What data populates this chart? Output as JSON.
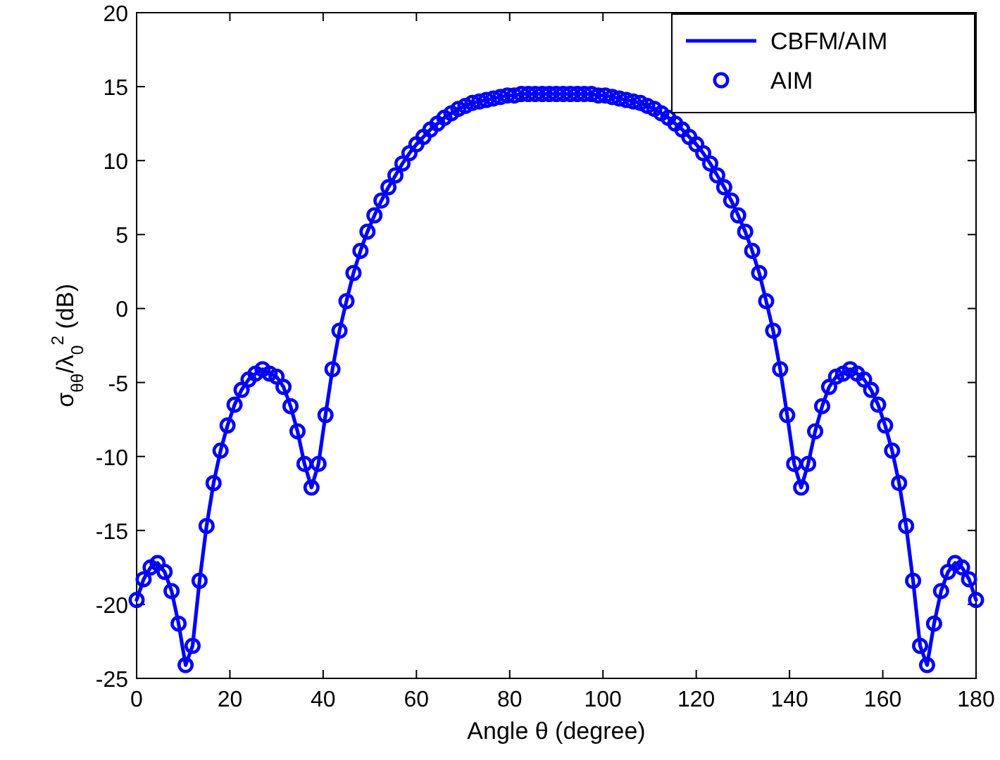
{
  "chart_data": {
    "type": "line",
    "xlabel": "Angle θ (degree)",
    "ylabel": "σ$_{θθ}$/λ$_{0}$$^{2}$ (dB)",
    "x": [
      0,
      1.5,
      3,
      4.5,
      6,
      7.5,
      9,
      10.5,
      12,
      13.5,
      15,
      16.5,
      18,
      19.5,
      21,
      22.5,
      24,
      25.5,
      27,
      28.5,
      30,
      31.5,
      33,
      34.5,
      36,
      37.5,
      39,
      40.5,
      42,
      43.5,
      45,
      46.5,
      48,
      49.5,
      51,
      52.5,
      54,
      55.5,
      57,
      58.5,
      60,
      61.5,
      63,
      64.5,
      66,
      67.5,
      69,
      70.5,
      72,
      73.5,
      75,
      76.5,
      78,
      79.5,
      81,
      82.5,
      84,
      85.5,
      87,
      88.5,
      90,
      91.5,
      93,
      94.5,
      96,
      97.5,
      99,
      100.5,
      102,
      103.5,
      105,
      106.5,
      108,
      109.5,
      111,
      112.5,
      114,
      115.5,
      117,
      118.5,
      120,
      121.5,
      123,
      124.5,
      126,
      127.5,
      129,
      130.5,
      132,
      133.5,
      135,
      136.5,
      138,
      139.5,
      141,
      142.5,
      144,
      145.5,
      147,
      148.5,
      150,
      151.5,
      153,
      154.5,
      156,
      157.5,
      159,
      160.5,
      162,
      163.5,
      165,
      166.5,
      168,
      169.5,
      171,
      172.5,
      174,
      175.5,
      177,
      178.5,
      180
    ],
    "series": [
      {
        "name": "CBFM/AIM",
        "color": "#0000ff",
        "line_style": "solid",
        "marker": "none",
        "values": [
          -19.7,
          -18.3,
          -17.5,
          -17.2,
          -17.8,
          -19.1,
          -21.3,
          -24.1,
          -22.8,
          -18.4,
          -14.7,
          -11.8,
          -9.6,
          -7.9,
          -6.5,
          -5.5,
          -4.8,
          -4.4,
          -4.1,
          -4.4,
          -4.6,
          -5.3,
          -6.6,
          -8.3,
          -10.5,
          -12.1,
          -10.5,
          -7.2,
          -4.1,
          -1.5,
          0.5,
          2.4,
          3.9,
          5.2,
          6.3,
          7.3,
          8.2,
          9.0,
          9.8,
          10.5,
          11.1,
          11.6,
          12.1,
          12.5,
          12.9,
          13.2,
          13.5,
          13.7,
          13.9,
          14.0,
          14.1,
          14.2,
          14.3,
          14.4,
          14.4,
          14.5,
          14.5,
          14.5,
          14.5,
          14.5,
          14.5,
          14.5,
          14.5,
          14.5,
          14.5,
          14.5,
          14.4,
          14.4,
          14.3,
          14.2,
          14.1,
          14.0,
          13.9,
          13.7,
          13.5,
          13.2,
          12.9,
          12.5,
          12.1,
          11.6,
          11.1,
          10.5,
          9.8,
          9.0,
          8.2,
          7.3,
          6.3,
          5.2,
          3.9,
          2.4,
          0.5,
          -1.5,
          -4.1,
          -7.2,
          -10.5,
          -12.1,
          -10.5,
          -8.3,
          -6.6,
          -5.3,
          -4.6,
          -4.4,
          -4.1,
          -4.4,
          -4.8,
          -5.5,
          -6.5,
          -7.9,
          -9.6,
          -11.8,
          -14.7,
          -18.4,
          -22.8,
          -24.1,
          -21.3,
          -19.1,
          -17.8,
          -17.2,
          -17.5,
          -18.3,
          -19.7
        ]
      },
      {
        "name": "AIM",
        "type": "scatter",
        "color": "#0000ff",
        "marker": "circle",
        "values": [
          -19.7,
          -18.3,
          -17.5,
          -17.2,
          -17.8,
          -19.1,
          -21.3,
          -24.1,
          -22.8,
          -18.4,
          -14.7,
          -11.8,
          -9.6,
          -7.9,
          -6.5,
          -5.5,
          -4.8,
          -4.4,
          -4.1,
          -4.4,
          -4.6,
          -5.3,
          -6.6,
          -8.3,
          -10.5,
          -12.1,
          -10.5,
          -7.2,
          -4.1,
          -1.5,
          0.5,
          2.4,
          3.9,
          5.2,
          6.3,
          7.3,
          8.2,
          9.0,
          9.8,
          10.5,
          11.1,
          11.6,
          12.1,
          12.5,
          12.9,
          13.2,
          13.5,
          13.7,
          13.9,
          14.0,
          14.1,
          14.2,
          14.3,
          14.4,
          14.4,
          14.5,
          14.5,
          14.5,
          14.5,
          14.5,
          14.5,
          14.5,
          14.5,
          14.5,
          14.5,
          14.5,
          14.4,
          14.4,
          14.3,
          14.2,
          14.1,
          14.0,
          13.9,
          13.7,
          13.5,
          13.2,
          12.9,
          12.5,
          12.1,
          11.6,
          11.1,
          10.5,
          9.8,
          9.0,
          8.2,
          7.3,
          6.3,
          5.2,
          3.9,
          2.4,
          0.5,
          -1.5,
          -4.1,
          -7.2,
          -10.5,
          -12.1,
          -10.5,
          -8.3,
          -6.6,
          -5.3,
          -4.6,
          -4.4,
          -4.1,
          -4.4,
          -4.8,
          -5.5,
          -6.5,
          -7.9,
          -9.6,
          -11.8,
          -14.7,
          -18.4,
          -22.8,
          -24.1,
          -21.3,
          -19.1,
          -17.8,
          -17.2,
          -17.5,
          -18.3,
          -19.7
        ]
      }
    ],
    "xlim": [
      0,
      180
    ],
    "xticks": [
      0,
      20,
      40,
      60,
      80,
      100,
      120,
      140,
      160,
      180
    ],
    "ylim": [
      -25,
      20
    ],
    "yticks": [
      -25,
      -20,
      -15,
      -10,
      -5,
      0,
      5,
      10,
      15,
      20
    ],
    "grid": false,
    "legend": "top right"
  }
}
